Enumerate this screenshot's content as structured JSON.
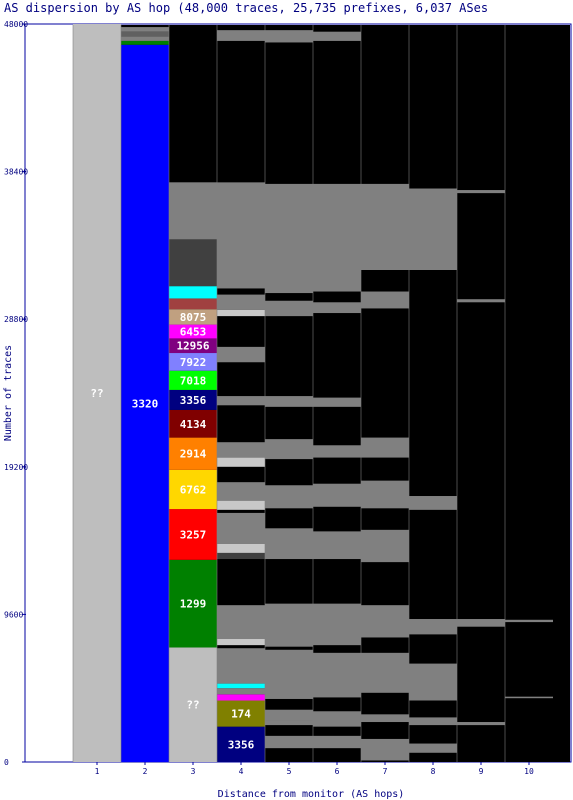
{
  "chart_data": {
    "type": "bar",
    "title": "AS dispersion by AS hop (48,000 traces, 25,735 prefixes, 6,037 ASes",
    "xlabel": "Distance from monitor (AS hops)",
    "ylabel": "Number of traces",
    "ylim": [
      0,
      48000
    ],
    "yticks": [
      "0",
      "9600",
      "19200",
      "28800",
      "38400",
      "48000"
    ],
    "categories": [
      "1",
      "2",
      "3",
      "4",
      "5",
      "6",
      "7",
      "8",
      "9",
      "10"
    ],
    "colors": {
      "plot_bg": "#000000",
      "unknown": "#bebebe",
      "minor_as": "#808080",
      "minor_as_light": "#c8c8c8",
      "dark": "#404040",
      "axis": "#000080",
      "frame": "#0000a0"
    },
    "series": [
      {
        "hop": "1",
        "segments": [
          {
            "label": "??",
            "from": 0,
            "to": 48000,
            "color": "#bebebe",
            "text_color": "#ffffff"
          }
        ]
      },
      {
        "hop": "2",
        "segments": [
          {
            "label": "3320",
            "from": 0,
            "to": 46650,
            "color": "#0000ff",
            "text_color": "#ffffff"
          },
          {
            "label": "",
            "from": 46650,
            "to": 46900,
            "color": "#008000"
          },
          {
            "label": "",
            "from": 46900,
            "to": 47200,
            "color": "#808080"
          },
          {
            "label": "",
            "from": 47200,
            "to": 47500,
            "color": "#606060"
          },
          {
            "label": "",
            "from": 47500,
            "to": 47800,
            "color": "#808080"
          }
        ]
      },
      {
        "hop": "3",
        "segments": [
          {
            "label": "??",
            "from": 0,
            "to": 7450,
            "color": "#bebebe",
            "text_color": "#ffffff"
          },
          {
            "label": "1299",
            "from": 7450,
            "to": 13150,
            "color": "#008000",
            "text_color": "#ffffff"
          },
          {
            "label": "3257",
            "from": 13150,
            "to": 16450,
            "color": "#ff0000",
            "text_color": "#ffffff"
          },
          {
            "label": "6762",
            "from": 16450,
            "to": 19000,
            "color": "#ffd700",
            "text_color": "#ffffff"
          },
          {
            "label": "2914",
            "from": 19000,
            "to": 21100,
            "color": "#ff8000",
            "text_color": "#ffffff"
          },
          {
            "label": "4134",
            "from": 21100,
            "to": 22900,
            "color": "#800000",
            "text_color": "#ffffff"
          },
          {
            "label": "3356",
            "from": 22900,
            "to": 24200,
            "color": "#000080",
            "text_color": "#ffffff"
          },
          {
            "label": "7018",
            "from": 24200,
            "to": 25450,
            "color": "#00ff00",
            "text_color": "#ffffff"
          },
          {
            "label": "7922",
            "from": 25450,
            "to": 26600,
            "color": "#8080ff",
            "text_color": "#ffffff"
          },
          {
            "label": "12956",
            "from": 26600,
            "to": 27550,
            "color": "#800080",
            "text_color": "#ffffff"
          },
          {
            "label": "6453",
            "from": 27550,
            "to": 28450,
            "color": "#ff00ff",
            "text_color": "#ffffff"
          },
          {
            "label": "8075",
            "from": 28450,
            "to": 29450,
            "color": "#c0a080",
            "text_color": "#ffffff"
          },
          {
            "label": "",
            "from": 29450,
            "to": 30150,
            "color": "#a04040"
          },
          {
            "label": "",
            "from": 30150,
            "to": 30950,
            "color": "#00ffff"
          },
          {
            "label": "",
            "from": 30950,
            "to": 37700,
            "color": "#404040"
          },
          {
            "label": "",
            "from": 34000,
            "to": 37700,
            "color": "#808080"
          }
        ]
      },
      {
        "hop": "4",
        "segments": [
          {
            "label": "3356",
            "from": 0,
            "to": 2300,
            "color": "#000080",
            "text_color": "#ffffff"
          },
          {
            "label": "174",
            "from": 2300,
            "to": 4000,
            "color": "#808000",
            "text_color": "#ffffff"
          },
          {
            "label": "",
            "from": 4000,
            "to": 4400,
            "color": "#ff00ff"
          },
          {
            "label": "",
            "from": 4400,
            "to": 4800,
            "color": "#808080"
          },
          {
            "label": "",
            "from": 4800,
            "to": 5100,
            "color": "#00ffff"
          },
          {
            "label": "",
            "from": 5100,
            "to": 7400,
            "color": "#808080"
          },
          {
            "label": "",
            "from": 7600,
            "to": 8000,
            "color": "#c8c8c8"
          },
          {
            "label": "",
            "from": 8000,
            "to": 10200,
            "color": "#808080"
          },
          {
            "label": "",
            "from": 13200,
            "to": 13600,
            "color": "#404040"
          },
          {
            "label": "",
            "from": 13600,
            "to": 14200,
            "color": "#c8c8c8"
          },
          {
            "label": "",
            "from": 14200,
            "to": 16200,
            "color": "#808080"
          },
          {
            "label": "",
            "from": 16400,
            "to": 17000,
            "color": "#c8c8c8"
          },
          {
            "label": "",
            "from": 17000,
            "to": 18200,
            "color": "#808080"
          },
          {
            "label": "",
            "from": 19200,
            "to": 19800,
            "color": "#c8c8c8"
          },
          {
            "label": "",
            "from": 19800,
            "to": 20800,
            "color": "#808080"
          },
          {
            "label": "",
            "from": 23200,
            "to": 23800,
            "color": "#808080"
          },
          {
            "label": "",
            "from": 26000,
            "to": 27000,
            "color": "#808080"
          },
          {
            "label": "",
            "from": 29000,
            "to": 29400,
            "color": "#c8c8c8"
          },
          {
            "label": "",
            "from": 29400,
            "to": 30400,
            "color": "#808080"
          },
          {
            "label": "",
            "from": 30800,
            "to": 37700,
            "color": "#808080"
          },
          {
            "label": "",
            "from": 46900,
            "to": 47600,
            "color": "#808080"
          }
        ]
      },
      {
        "hop": "5",
        "segments": [
          {
            "label": "",
            "from": 900,
            "to": 1700,
            "color": "#808080"
          },
          {
            "label": "",
            "from": 2400,
            "to": 2700,
            "color": "#808080"
          },
          {
            "label": "",
            "from": 2700,
            "to": 3400,
            "color": "#808080"
          },
          {
            "label": "",
            "from": 4100,
            "to": 7300,
            "color": "#808080"
          },
          {
            "label": "",
            "from": 7500,
            "to": 10300,
            "color": "#808080"
          },
          {
            "label": "",
            "from": 13200,
            "to": 15200,
            "color": "#808080"
          },
          {
            "label": "",
            "from": 16500,
            "to": 18000,
            "color": "#808080"
          },
          {
            "label": "",
            "from": 19700,
            "to": 21000,
            "color": "#808080"
          },
          {
            "label": "",
            "from": 23100,
            "to": 23800,
            "color": "#808080"
          },
          {
            "label": "",
            "from": 29000,
            "to": 30000,
            "color": "#808080"
          },
          {
            "label": "",
            "from": 30500,
            "to": 37600,
            "color": "#808080"
          },
          {
            "label": "",
            "from": 46800,
            "to": 47600,
            "color": "#808080"
          }
        ]
      },
      {
        "hop": "6",
        "segments": [
          {
            "label": "",
            "from": 900,
            "to": 1700,
            "color": "#808080"
          },
          {
            "label": "",
            "from": 2300,
            "to": 3300,
            "color": "#808080"
          },
          {
            "label": "",
            "from": 4200,
            "to": 7100,
            "color": "#808080"
          },
          {
            "label": "",
            "from": 7600,
            "to": 10300,
            "color": "#808080"
          },
          {
            "label": "",
            "from": 13200,
            "to": 15000,
            "color": "#808080"
          },
          {
            "label": "",
            "from": 16600,
            "to": 18100,
            "color": "#808080"
          },
          {
            "label": "",
            "from": 19800,
            "to": 20600,
            "color": "#808080"
          },
          {
            "label": "",
            "from": 23100,
            "to": 23700,
            "color": "#808080"
          },
          {
            "label": "",
            "from": 29200,
            "to": 29900,
            "color": "#808080"
          },
          {
            "label": "",
            "from": 30600,
            "to": 37600,
            "color": "#808080"
          },
          {
            "label": "",
            "from": 46900,
            "to": 47500,
            "color": "#808080"
          }
        ]
      },
      {
        "hop": "7",
        "segments": [
          {
            "label": "",
            "from": 100,
            "to": 1500,
            "color": "#808080"
          },
          {
            "label": "",
            "from": 2600,
            "to": 3100,
            "color": "#808080"
          },
          {
            "label": "",
            "from": 4500,
            "to": 7100,
            "color": "#808080"
          },
          {
            "label": "",
            "from": 8100,
            "to": 10200,
            "color": "#808080"
          },
          {
            "label": "",
            "from": 13000,
            "to": 15100,
            "color": "#808080"
          },
          {
            "label": "",
            "from": 16500,
            "to": 18300,
            "color": "#808080"
          },
          {
            "label": "",
            "from": 19800,
            "to": 21100,
            "color": "#808080"
          },
          {
            "label": "",
            "from": 29500,
            "to": 30600,
            "color": "#808080"
          },
          {
            "label": "",
            "from": 32000,
            "to": 37600,
            "color": "#808080"
          }
        ]
      },
      {
        "hop": "8",
        "segments": [
          {
            "label": "",
            "from": 600,
            "to": 1200,
            "color": "#808080"
          },
          {
            "label": "",
            "from": 2400,
            "to": 2900,
            "color": "#808080"
          },
          {
            "label": "",
            "from": 4000,
            "to": 6400,
            "color": "#808080"
          },
          {
            "label": "",
            "from": 8300,
            "to": 9300,
            "color": "#808080"
          },
          {
            "label": "",
            "from": 16400,
            "to": 17300,
            "color": "#808080"
          },
          {
            "label": "",
            "from": 32000,
            "to": 37300,
            "color": "#808080"
          }
        ]
      },
      {
        "hop": "9",
        "segments": [
          {
            "label": "",
            "from": 2400,
            "to": 2600,
            "color": "#808080"
          },
          {
            "label": "",
            "from": 8800,
            "to": 9300,
            "color": "#808080"
          },
          {
            "label": "",
            "from": 29900,
            "to": 30100,
            "color": "#808080"
          },
          {
            "label": "",
            "from": 37000,
            "to": 37200,
            "color": "#808080"
          }
        ]
      },
      {
        "hop": "10",
        "segments": [
          {
            "label": "",
            "from": 4150,
            "to": 4250,
            "color": "#808080"
          },
          {
            "label": "",
            "from": 9100,
            "to": 9250,
            "color": "#808080"
          }
        ]
      }
    ]
  }
}
